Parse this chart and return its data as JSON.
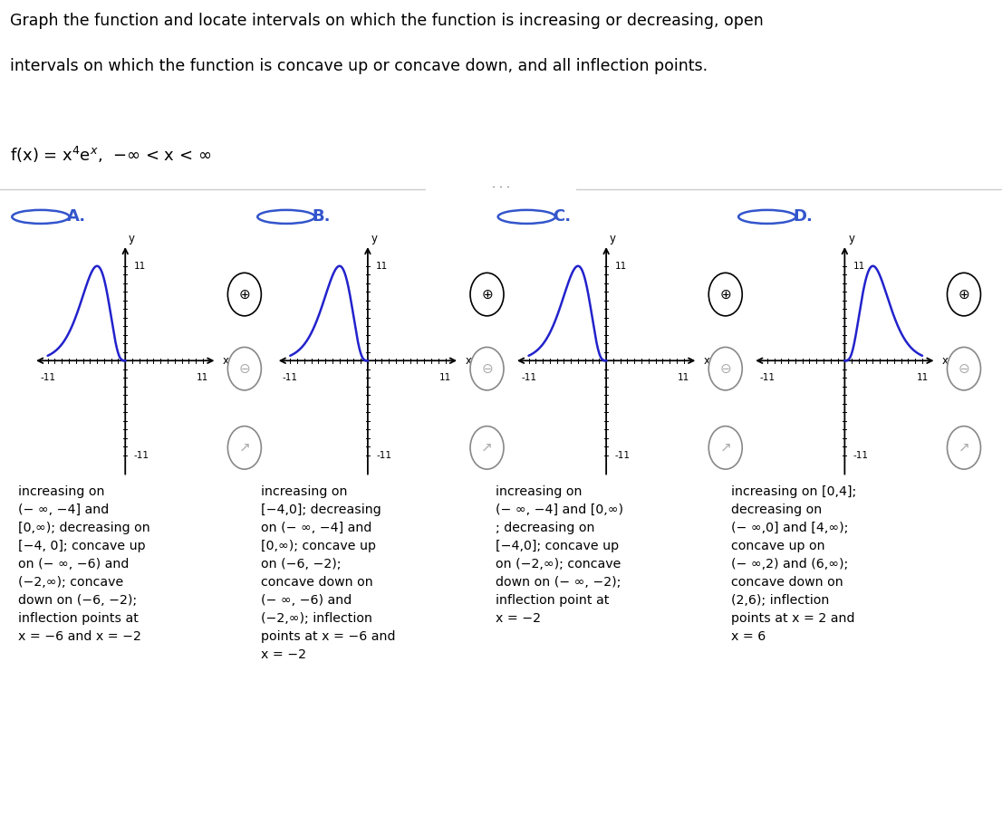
{
  "title_line1": "Graph the function and locate intervals on which the function is increasing or decreasing, open",
  "title_line2": "intervals on which the function is concave up or concave down, and all inflection points.",
  "formula_text": "f(x) = x",
  "options": [
    "A.",
    "B.",
    "C.",
    "D."
  ],
  "descriptions": [
    "increasing on\n(− ∞, −4] and\n[0,∞); decreasing on\n[−4, 0]; concave up\non (− ∞, −6) and\n(−2,∞); concave\ndown on (−6, −2);\ninflection points at\nx = −6 and x = −2",
    "increasing on\n[−4,0]; decreasing\non (− ∞, −4] and\n[0,∞); concave up\non (−6, −2);\nconcave down on\n(− ∞, −6) and\n(−2,∞); inflection\npoints at x = −6 and\nx = −2",
    "increasing on\n(− ∞, −4] and [0,∞)\n; decreasing on\n[−4,0]; concave up\non (−2,∞); concave\ndown on (− ∞, −2);\ninflection point at\nx = −2",
    "increasing on [0,4];\ndecreasing on\n(− ∞,0] and [4,∞);\nconcave up on\n(− ∞,2) and (6,∞);\nconcave down on\n(2,6); inflection\npoints at x = 2 and\nx = 6"
  ],
  "bg_color": "#ffffff",
  "text_color": "#000000",
  "blue_color": "#2222cc",
  "option_blue": "#3355cc",
  "sep_color": "#cccccc",
  "btn_color": "#aaaaaa"
}
